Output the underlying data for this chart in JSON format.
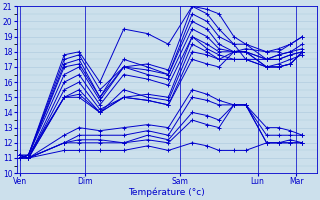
{
  "title": "",
  "xlabel": "Température (°c)",
  "ylabel": "",
  "ylim": [
    10,
    21
  ],
  "yticks": [
    10,
    11,
    12,
    13,
    14,
    15,
    16,
    17,
    18,
    19,
    20,
    21
  ],
  "xtick_labels": [
    "Ven",
    "Dim",
    "Sam",
    "Lun",
    "Mar"
  ],
  "bg_color": "#cce0ec",
  "grid_color": "#aac8dc",
  "line_color": "#0000cc",
  "marker": "+",
  "series": [
    [
      11.0,
      11.2,
      17.8,
      18.0,
      16.0,
      19.5,
      19.2,
      18.5,
      21.0,
      20.8,
      20.5,
      19.0,
      18.5,
      18.0,
      18.2,
      18.5,
      19.0
    ],
    [
      11.0,
      11.2,
      17.5,
      17.8,
      15.5,
      17.0,
      17.2,
      16.8,
      21.0,
      20.5,
      19.5,
      18.5,
      17.5,
      17.5,
      17.8,
      18.0,
      18.5
    ],
    [
      11.0,
      11.2,
      17.2,
      17.5,
      15.0,
      17.5,
      17.0,
      16.5,
      20.5,
      20.0,
      19.0,
      18.5,
      18.5,
      17.5,
      17.8,
      18.0,
      18.2
    ],
    [
      11.0,
      11.2,
      17.0,
      17.2,
      15.0,
      17.0,
      16.8,
      16.5,
      20.0,
      19.5,
      18.5,
      18.0,
      18.0,
      17.5,
      17.5,
      17.8,
      18.0
    ],
    [
      11.0,
      11.2,
      16.5,
      17.0,
      14.8,
      17.0,
      16.5,
      16.2,
      19.5,
      19.0,
      18.2,
      18.0,
      18.0,
      17.0,
      17.2,
      17.5,
      17.8
    ],
    [
      11.0,
      11.0,
      16.0,
      16.5,
      14.5,
      16.5,
      16.2,
      15.8,
      19.0,
      18.5,
      18.0,
      18.0,
      18.0,
      17.0,
      17.0,
      17.2,
      18.0
    ],
    [
      11.0,
      11.0,
      15.5,
      16.0,
      14.2,
      15.0,
      15.2,
      15.0,
      19.0,
      18.2,
      17.8,
      17.5,
      17.5,
      17.0,
      17.0,
      17.2,
      18.0
    ],
    [
      11.0,
      11.0,
      15.0,
      15.5,
      14.0,
      15.5,
      15.0,
      14.8,
      18.5,
      18.0,
      17.5,
      17.5,
      17.5,
      17.0,
      17.0,
      17.2,
      18.0
    ],
    [
      11.0,
      11.0,
      15.0,
      15.2,
      14.0,
      15.0,
      14.8,
      14.5,
      18.0,
      17.8,
      17.5,
      18.0,
      18.0,
      17.5,
      17.5,
      17.8,
      18.0
    ],
    [
      11.2,
      11.2,
      15.0,
      15.0,
      14.0,
      15.0,
      14.8,
      14.5,
      17.5,
      17.2,
      17.0,
      18.0,
      18.2,
      18.0,
      18.0,
      18.5,
      19.0
    ],
    [
      11.2,
      11.0,
      12.5,
      13.0,
      12.8,
      13.0,
      13.2,
      13.0,
      15.5,
      15.2,
      14.8,
      14.5,
      14.5,
      13.0,
      13.0,
      12.8,
      12.5
    ],
    [
      11.2,
      11.0,
      12.0,
      12.5,
      12.5,
      12.5,
      12.8,
      12.5,
      15.0,
      14.8,
      14.5,
      14.5,
      14.5,
      12.5,
      12.5,
      12.5,
      12.5
    ],
    [
      11.2,
      11.0,
      12.0,
      12.2,
      12.2,
      12.0,
      12.5,
      12.2,
      14.0,
      13.8,
      13.5,
      14.5,
      14.5,
      12.0,
      12.0,
      12.2,
      12.0
    ],
    [
      11.2,
      11.0,
      12.0,
      12.0,
      12.0,
      12.0,
      12.2,
      12.0,
      13.5,
      13.2,
      13.0,
      14.5,
      14.5,
      12.0,
      12.0,
      12.0,
      12.0
    ],
    [
      11.2,
      11.0,
      11.5,
      11.5,
      11.5,
      11.5,
      11.8,
      11.5,
      12.0,
      11.8,
      11.5,
      11.5,
      11.5,
      12.0,
      12.0,
      12.0,
      12.0
    ]
  ],
  "x_vals": [
    0.0,
    0.03,
    0.15,
    0.2,
    0.27,
    0.35,
    0.43,
    0.5,
    0.58,
    0.63,
    0.67,
    0.72,
    0.76,
    0.83,
    0.87,
    0.91,
    0.95
  ],
  "xtick_x": [
    0.0,
    0.22,
    0.54,
    0.8,
    0.93
  ],
  "vline_x": [
    0.0,
    0.22,
    0.54,
    0.8,
    0.93
  ],
  "figsize": [
    3.2,
    2.0
  ],
  "dpi": 100
}
